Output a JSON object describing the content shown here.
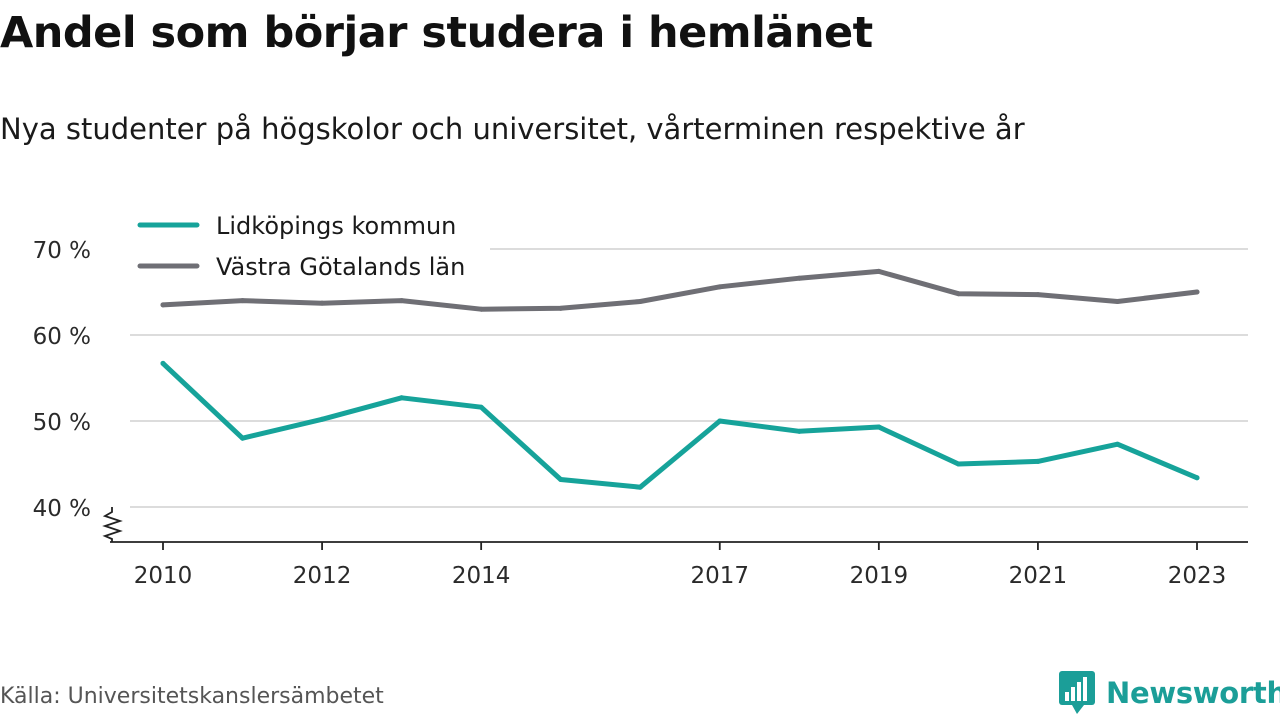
{
  "header": {
    "title": "Andel som börjar studera i hemlänet",
    "subtitle": "Nya studenter på högskolor och universitet, vårterminen respektive år"
  },
  "footer": {
    "source": "Källa: Universitetskanslersämbetet",
    "brand": "Newsworthy",
    "brand_icon": "bar-chart-badge-icon",
    "brand_color": "#1b9e98"
  },
  "chart_data": {
    "type": "line",
    "x": [
      2010,
      2011,
      2012,
      2013,
      2014,
      2015,
      2016,
      2017,
      2018,
      2019,
      2020,
      2021,
      2022,
      2023
    ],
    "x_ticks": [
      2010,
      2012,
      2014,
      2017,
      2019,
      2021,
      2023
    ],
    "y_ticks": [
      {
        "value": 40,
        "label": "40 %"
      },
      {
        "value": 50,
        "label": "50 %"
      },
      {
        "value": 60,
        "label": "60 %"
      },
      {
        "value": 70,
        "label": "70 %"
      }
    ],
    "ylim": [
      36,
      72
    ],
    "y_axis_break": true,
    "grid": true,
    "legend_position": "top-left",
    "series": [
      {
        "name": "Lidköpings kommun",
        "color": "#16a39a",
        "values": [
          56.7,
          48.0,
          50.2,
          52.7,
          51.6,
          43.2,
          42.3,
          50.0,
          48.8,
          49.3,
          45.0,
          45.3,
          47.3,
          43.4
        ]
      },
      {
        "name": "Västra Götalands län",
        "color": "#6f6f75",
        "values": [
          63.5,
          64.0,
          63.7,
          64.0,
          63.0,
          63.1,
          63.9,
          65.6,
          66.6,
          67.4,
          64.8,
          64.7,
          63.9,
          65.0
        ]
      }
    ]
  }
}
